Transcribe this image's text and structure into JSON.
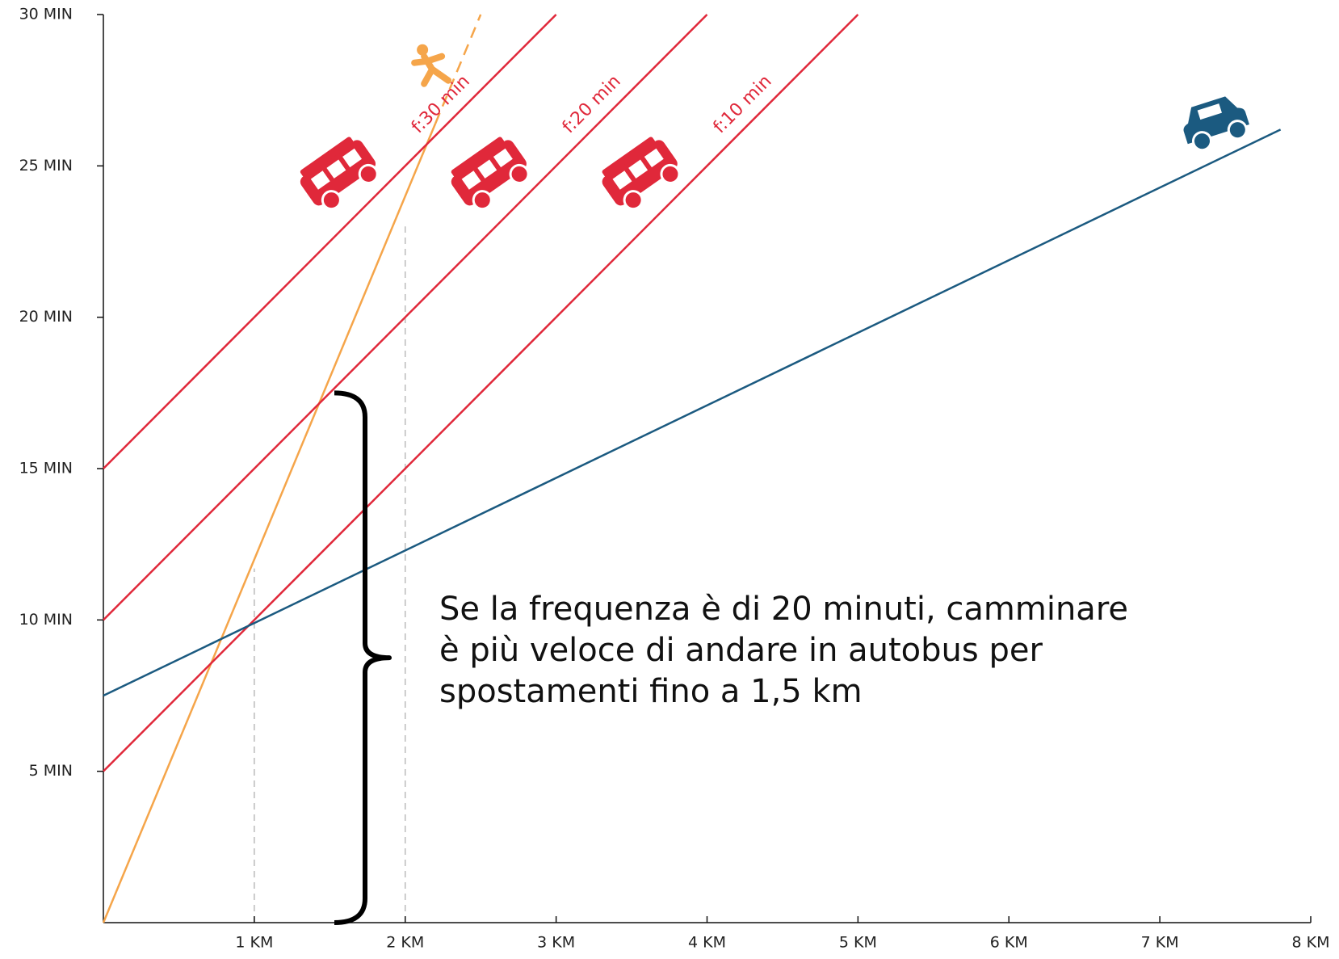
{
  "chart_data": {
    "type": "line",
    "xlim": [
      0,
      8
    ],
    "ylim": [
      0,
      30
    ],
    "xticks": [
      {
        "value": 1,
        "label": "1 KM"
      },
      {
        "value": 2,
        "label": "2 KM"
      },
      {
        "value": 3,
        "label": "3 KM"
      },
      {
        "value": 4,
        "label": "4 KM"
      },
      {
        "value": 5,
        "label": "5 KM"
      },
      {
        "value": 6,
        "label": "6 KM"
      },
      {
        "value": 7,
        "label": "7 KM"
      },
      {
        "value": 8,
        "label": "8 KM"
      }
    ],
    "yticks": [
      {
        "value": 5,
        "label": "5 MIN"
      },
      {
        "value": 10,
        "label": "10 MIN"
      },
      {
        "value": 15,
        "label": "15 MIN"
      },
      {
        "value": 20,
        "label": "20 MIN"
      },
      {
        "value": 25,
        "label": "25 MIN"
      },
      {
        "value": 30,
        "label": "30 MIN"
      }
    ],
    "series": [
      {
        "color": "#f5a54a",
        "line_style": "solid",
        "icon": "walk",
        "x": [
          0,
          2.2
        ],
        "values": [
          0,
          26.4
        ]
      },
      {
        "color": "#f5a54a",
        "line_style": "dashed",
        "x": [
          2.2,
          2.5
        ],
        "values": [
          26.4,
          30
        ]
      },
      {
        "name": "f:30 min",
        "color": "#e0283a",
        "line_style": "solid",
        "icon": "bus",
        "x": [
          0,
          3
        ],
        "values": [
          15,
          30
        ]
      },
      {
        "name": "f:20 min",
        "color": "#e0283a",
        "line_style": "solid",
        "icon": "bus",
        "x": [
          0,
          4
        ],
        "values": [
          10,
          30
        ]
      },
      {
        "name": "f:10 min",
        "color": "#e0283a",
        "line_style": "solid",
        "icon": "bus",
        "x": [
          0,
          5
        ],
        "values": [
          5,
          30
        ]
      },
      {
        "color": "#1b5a80",
        "line_style": "solid",
        "icon": "car",
        "x": [
          0,
          7.8
        ],
        "values": [
          7.5,
          26.2
        ]
      }
    ],
    "reference_lines": [
      {
        "x": 1,
        "y": 11.7
      },
      {
        "x": 2,
        "y": 23
      }
    ],
    "annotation": {
      "lines": [
        "Se la frequenza è di 20 minuti, camminare",
        "è più veloce di andare in autobus per",
        "spostamenti fino a 1,5 km"
      ],
      "brace_ylim": [
        0,
        17.5
      ]
    }
  }
}
